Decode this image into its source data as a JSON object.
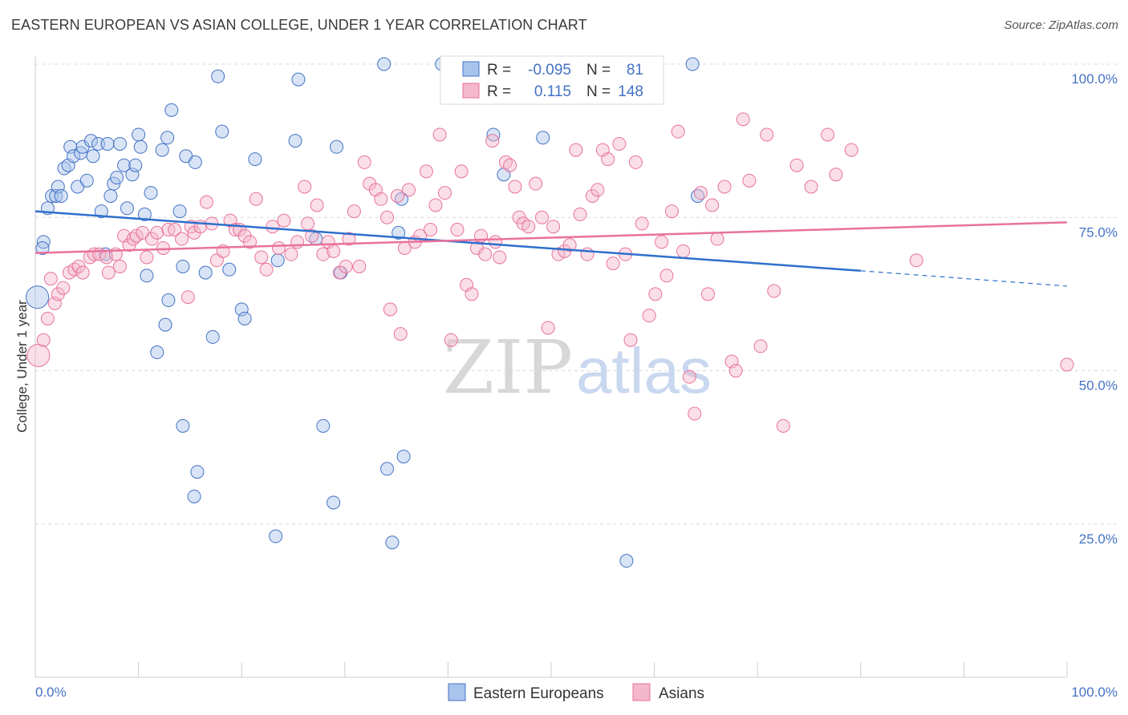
{
  "title": "EASTERN EUROPEAN VS ASIAN COLLEGE, UNDER 1 YEAR CORRELATION CHART",
  "source": "Source: ZipAtlas.com",
  "watermark": {
    "zip": "ZIP",
    "atlas": "atlas"
  },
  "colors": {
    "blue": "#4472c4",
    "blue_fill": "#a9c4ec",
    "blue_line": "#2e6fcc",
    "pink": "#e8729b",
    "pink_fill": "#f4b7cb",
    "grid": "#d9d9d9"
  },
  "chart_data": {
    "type": "scatter",
    "title": "EASTERN EUROPEAN VS ASIAN COLLEGE, UNDER 1 YEAR CORRELATION CHART",
    "xlabel": "",
    "ylabel": "College, Under 1 year",
    "xlim": [
      0,
      100
    ],
    "ylim": [
      0,
      100
    ],
    "x_tick_labels": [
      "0.0%",
      "100.0%"
    ],
    "y_ticks": [
      25,
      50,
      75,
      100
    ],
    "y_tick_labels": [
      "25.0%",
      "50.0%",
      "75.0%",
      "100.0%"
    ],
    "grid": true,
    "legend": [
      {
        "series": "Eastern Europeans",
        "r_label": "R =",
        "r": "-0.095",
        "n_label": "N =",
        "n": "81"
      },
      {
        "series": "Asians",
        "r_label": "R =",
        "r": "0.115",
        "n_label": "N =",
        "n": "148"
      }
    ],
    "series": [
      {
        "name": "Eastern Europeans",
        "color": "#4472c4",
        "trend": {
          "x0": 0,
          "y0": 76.0,
          "x1": 80,
          "y1": 66.3,
          "dashed_to": 100,
          "dashed_y": 63.8
        },
        "points": [
          [
            0.2,
            62
          ],
          [
            0.8,
            71
          ],
          [
            0.7,
            70
          ],
          [
            1.2,
            76.5
          ],
          [
            1.6,
            78.5
          ],
          [
            2,
            78.5
          ],
          [
            2.2,
            80
          ],
          [
            2.5,
            78.5
          ],
          [
            2.8,
            83
          ],
          [
            3.2,
            83.5
          ],
          [
            3.4,
            86.5
          ],
          [
            3.7,
            85
          ],
          [
            4.1,
            80
          ],
          [
            4.4,
            85.5
          ],
          [
            4.6,
            86.5
          ],
          [
            5,
            81
          ],
          [
            5.4,
            87.5
          ],
          [
            5.6,
            85
          ],
          [
            6.1,
            87
          ],
          [
            6.4,
            76
          ],
          [
            6.8,
            69
          ],
          [
            7,
            87
          ],
          [
            7.3,
            78.5
          ],
          [
            7.6,
            80.5
          ],
          [
            7.9,
            81.5
          ],
          [
            8.2,
            87
          ],
          [
            8.6,
            83.5
          ],
          [
            8.9,
            76.5
          ],
          [
            9.4,
            82
          ],
          [
            9.7,
            83.5
          ],
          [
            10,
            88.5
          ],
          [
            10.2,
            86.5
          ],
          [
            10.6,
            75.5
          ],
          [
            10.8,
            65.5
          ],
          [
            11.2,
            79
          ],
          [
            11.8,
            53
          ],
          [
            12.3,
            86
          ],
          [
            12.6,
            57.5
          ],
          [
            12.8,
            88
          ],
          [
            12.9,
            61.5
          ],
          [
            13.2,
            92.5
          ],
          [
            14,
            76
          ],
          [
            14.3,
            67
          ],
          [
            14.6,
            85
          ],
          [
            14.3,
            41
          ],
          [
            15.5,
            84
          ],
          [
            15.7,
            33.5
          ],
          [
            15.4,
            29.5
          ],
          [
            16.5,
            66
          ],
          [
            17.2,
            55.5
          ],
          [
            17.7,
            98
          ],
          [
            18.1,
            89
          ],
          [
            18.8,
            66.5
          ],
          [
            20,
            60
          ],
          [
            20.3,
            58.5
          ],
          [
            21.3,
            84.5
          ],
          [
            23.3,
            23
          ],
          [
            23.5,
            68
          ],
          [
            25.2,
            87.5
          ],
          [
            25.5,
            97.5
          ],
          [
            27.2,
            71.5
          ],
          [
            27.9,
            41
          ],
          [
            28.9,
            28.5
          ],
          [
            29.2,
            86.5
          ],
          [
            29.6,
            66
          ],
          [
            33.8,
            100
          ],
          [
            34.1,
            34
          ],
          [
            34.6,
            22
          ],
          [
            35.2,
            72.5
          ],
          [
            35.5,
            78
          ],
          [
            35.7,
            36
          ],
          [
            39.4,
            100
          ],
          [
            44.4,
            88.5
          ],
          [
            45.4,
            82
          ],
          [
            49.2,
            88
          ],
          [
            57.3,
            19
          ],
          [
            63.7,
            100
          ],
          [
            64.2,
            78.5
          ]
        ]
      },
      {
        "name": "Asians",
        "color": "#e8729b",
        "trend": {
          "x0": 0,
          "y0": 69.2,
          "x1": 100,
          "y1": 74.2
        },
        "points": [
          [
            0.3,
            52.5
          ],
          [
            0.8,
            55
          ],
          [
            1.2,
            58.5
          ],
          [
            1.5,
            65
          ],
          [
            1.9,
            61
          ],
          [
            2.2,
            62.5
          ],
          [
            2.7,
            63.5
          ],
          [
            3.3,
            66
          ],
          [
            3.8,
            66.5
          ],
          [
            4.2,
            67
          ],
          [
            4.6,
            66
          ],
          [
            5.3,
            68.5
          ],
          [
            5.7,
            69
          ],
          [
            6.2,
            69
          ],
          [
            6.9,
            68.5
          ],
          [
            7.1,
            66
          ],
          [
            7.8,
            69
          ],
          [
            8.2,
            67
          ],
          [
            8.6,
            72
          ],
          [
            9.1,
            70.5
          ],
          [
            9.5,
            71.5
          ],
          [
            9.8,
            72
          ],
          [
            10.4,
            72.5
          ],
          [
            10.8,
            68.5
          ],
          [
            11.3,
            71.5
          ],
          [
            11.8,
            72.5
          ],
          [
            12.4,
            70
          ],
          [
            12.9,
            73
          ],
          [
            13.5,
            73
          ],
          [
            14.2,
            71.5
          ],
          [
            14.8,
            62
          ],
          [
            15.1,
            73.5
          ],
          [
            15.4,
            72.5
          ],
          [
            16,
            73.5
          ],
          [
            16.6,
            77.5
          ],
          [
            17.1,
            74
          ],
          [
            17.6,
            68
          ],
          [
            18.2,
            69.5
          ],
          [
            18.9,
            74.5
          ],
          [
            19.4,
            73
          ],
          [
            19.8,
            73
          ],
          [
            20.3,
            72
          ],
          [
            20.8,
            71
          ],
          [
            21.4,
            78
          ],
          [
            21.9,
            68.5
          ],
          [
            22.4,
            66.5
          ],
          [
            23,
            73.5
          ],
          [
            23.6,
            70
          ],
          [
            24.1,
            74.5
          ],
          [
            24.8,
            69
          ],
          [
            25.4,
            71
          ],
          [
            26.1,
            80
          ],
          [
            26.4,
            74
          ],
          [
            26.8,
            72
          ],
          [
            27.3,
            77
          ],
          [
            27.9,
            69
          ],
          [
            28.4,
            71
          ],
          [
            28.9,
            69.5
          ],
          [
            29.5,
            66
          ],
          [
            30.1,
            67
          ],
          [
            30.4,
            71.5
          ],
          [
            30.9,
            76
          ],
          [
            31.4,
            67
          ],
          [
            31.9,
            84
          ],
          [
            32.4,
            80.5
          ],
          [
            33,
            79.5
          ],
          [
            33.5,
            78
          ],
          [
            34.1,
            75
          ],
          [
            34.4,
            60
          ],
          [
            35.1,
            78.5
          ],
          [
            35.4,
            56
          ],
          [
            35.8,
            70
          ],
          [
            36.2,
            79.5
          ],
          [
            36.8,
            71
          ],
          [
            37.3,
            72
          ],
          [
            37.9,
            82.5
          ],
          [
            38.3,
            73
          ],
          [
            38.8,
            77
          ],
          [
            39.2,
            88.5
          ],
          [
            39.7,
            79
          ],
          [
            40.3,
            55
          ],
          [
            40.9,
            73
          ],
          [
            41.3,
            82.5
          ],
          [
            41.8,
            64
          ],
          [
            42.3,
            62.5
          ],
          [
            42.8,
            70
          ],
          [
            43.2,
            72
          ],
          [
            43.6,
            69
          ],
          [
            44.3,
            87.5
          ],
          [
            44.6,
            71
          ],
          [
            45,
            68.5
          ],
          [
            45.6,
            84
          ],
          [
            46,
            83.5
          ],
          [
            46.5,
            80
          ],
          [
            46.9,
            75
          ],
          [
            47.3,
            74
          ],
          [
            47.8,
            73.5
          ],
          [
            48.5,
            80.5
          ],
          [
            49.1,
            75
          ],
          [
            49.7,
            57
          ],
          [
            50.2,
            73.5
          ],
          [
            50.7,
            69
          ],
          [
            51.3,
            69.5
          ],
          [
            51.8,
            70.5
          ],
          [
            52.4,
            86
          ],
          [
            52.8,
            75.5
          ],
          [
            53.5,
            69
          ],
          [
            54,
            78.5
          ],
          [
            54.5,
            79.5
          ],
          [
            55,
            86
          ],
          [
            55.5,
            84.5
          ],
          [
            56,
            67.5
          ],
          [
            56.6,
            87
          ],
          [
            57.2,
            69
          ],
          [
            57.7,
            55
          ],
          [
            58.2,
            84
          ],
          [
            58.8,
            74
          ],
          [
            59.5,
            59
          ],
          [
            60.1,
            62.5
          ],
          [
            60.7,
            71
          ],
          [
            61.2,
            65.5
          ],
          [
            61.7,
            76
          ],
          [
            62.3,
            89
          ],
          [
            62.8,
            69.5
          ],
          [
            63.4,
            49
          ],
          [
            63.9,
            43
          ],
          [
            64.5,
            79
          ],
          [
            65.2,
            62.5
          ],
          [
            65.6,
            77
          ],
          [
            66.1,
            71.5
          ],
          [
            66.8,
            80
          ],
          [
            67.5,
            51.5
          ],
          [
            67.9,
            50
          ],
          [
            68.6,
            91
          ],
          [
            69.2,
            81
          ],
          [
            70.3,
            54
          ],
          [
            70.9,
            88.5
          ],
          [
            71.6,
            63
          ],
          [
            72.5,
            41
          ],
          [
            73.8,
            83.5
          ],
          [
            75.2,
            80
          ],
          [
            76.8,
            88.5
          ],
          [
            77.6,
            82
          ],
          [
            79.1,
            86
          ],
          [
            85.4,
            68
          ],
          [
            100,
            51
          ]
        ]
      }
    ]
  },
  "bottom_legend": [
    {
      "label": "Eastern Europeans",
      "series": "Eastern Europeans"
    },
    {
      "label": "Asians",
      "series": "Asians"
    }
  ]
}
